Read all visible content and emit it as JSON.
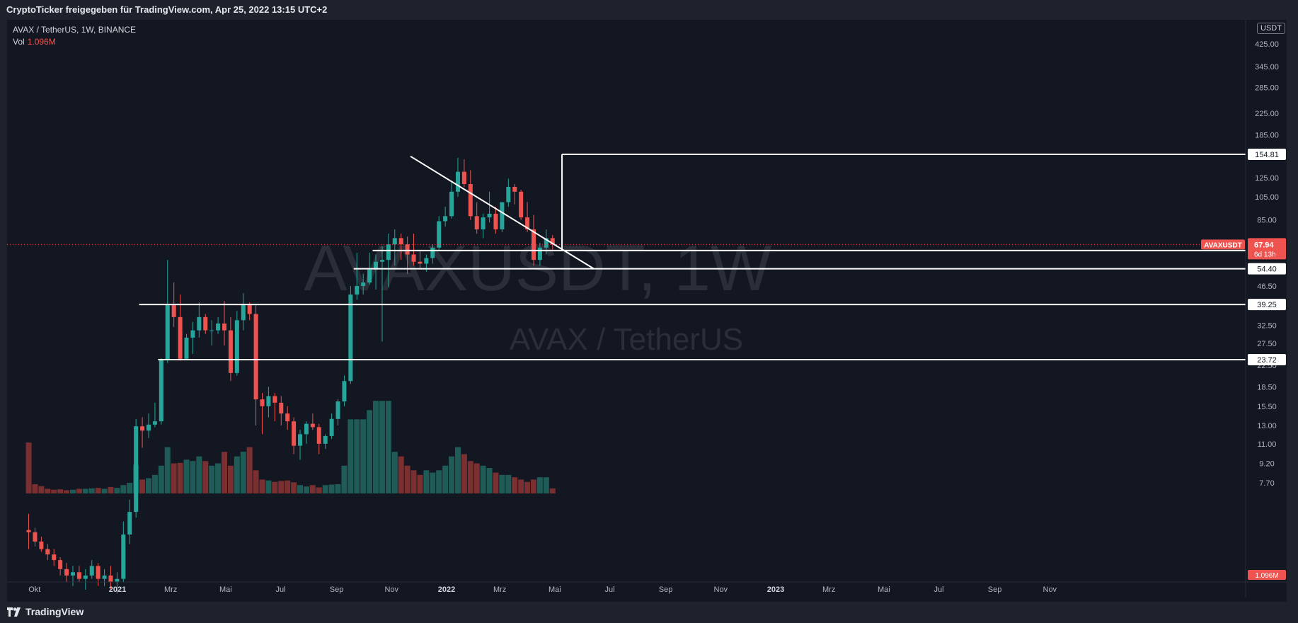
{
  "header": {
    "title": "CryptoTicker freigegeben für TradingView.com, Apr 25, 2022 13:15 UTC+2"
  },
  "legend": {
    "symbol": "AVAX / TetherUS, 1W, BINANCE",
    "vol_label": "Vol",
    "vol_value": "1.096M"
  },
  "watermark": {
    "main": "AVAXUSDT, 1W",
    "sub": "AVAX / TetherUS"
  },
  "brand": {
    "name": "TradingView"
  },
  "currency_badge": "USDT",
  "colors": {
    "background": "#131722",
    "up": "#26a69a",
    "down": "#ef5350",
    "level_line": "#ffffff",
    "price_line": "#ef5350"
  },
  "chart_data": {
    "type": "candlestick",
    "scale": "log",
    "interval": "1W",
    "y_ticks": [
      "425.00",
      "345.00",
      "285.00",
      "225.00",
      "185.00",
      "125.00",
      "105.00",
      "85.00",
      "46.50",
      "32.50",
      "27.50",
      "22.50",
      "18.50",
      "15.50",
      "13.00",
      "11.00",
      "9.20",
      "7.70"
    ],
    "x_ticks": [
      {
        "label": "Okt",
        "date": "2020-10-01"
      },
      {
        "label": "2021",
        "date": "2021-01-01"
      },
      {
        "label": "Mrz",
        "date": "2021-03-01"
      },
      {
        "label": "Mai",
        "date": "2021-05-01"
      },
      {
        "label": "Jul",
        "date": "2021-07-01"
      },
      {
        "label": "Sep",
        "date": "2021-09-01"
      },
      {
        "label": "Nov",
        "date": "2021-11-01"
      },
      {
        "label": "2022",
        "date": "2022-01-01"
      },
      {
        "label": "Mrz",
        "date": "2022-03-01"
      },
      {
        "label": "Mai",
        "date": "2022-05-01"
      },
      {
        "label": "Jul",
        "date": "2022-07-01"
      },
      {
        "label": "Sep",
        "date": "2022-09-01"
      },
      {
        "label": "Nov",
        "date": "2022-11-01"
      },
      {
        "label": "2023",
        "date": "2023-01-01"
      },
      {
        "label": "Mrz",
        "date": "2023-03-01"
      },
      {
        "label": "Mai",
        "date": "2023-05-01"
      },
      {
        "label": "Jul",
        "date": "2023-07-01"
      },
      {
        "label": "Sep",
        "date": "2023-09-01"
      },
      {
        "label": "Nov",
        "date": "2023-11-01"
      }
    ],
    "current_price": {
      "symbol": "AVAXUSDT",
      "value": "67.94",
      "countdown": "6d 13h"
    },
    "levels": [
      {
        "price": "154.81",
        "start": "2022-05-09"
      },
      {
        "price": "64.30",
        "start": "2021-10-11"
      },
      {
        "price": "54.40",
        "start": "2021-09-20"
      },
      {
        "price": "39.25",
        "start": "2021-01-25"
      },
      {
        "price": "23.72",
        "start": "2021-02-15"
      }
    ],
    "box": {
      "from": "2022-05-09",
      "top": 154.81,
      "bottom": 64.3
    },
    "trendline": {
      "from": {
        "date": "2021-11-22",
        "price": 152
      },
      "to": {
        "date": "2022-06-13",
        "price": 54.5
      }
    },
    "volume_ylim": [
      0,
      26
    ],
    "candles": [
      {
        "d": "2020-09-21",
        "o": 5.0,
        "h": 5.8,
        "l": 4.2,
        "c": 4.9,
        "v": 11.0
      },
      {
        "d": "2020-09-28",
        "o": 4.9,
        "h": 5.1,
        "l": 4.3,
        "c": 4.5,
        "v": 2.0
      },
      {
        "d": "2020-10-05",
        "o": 4.5,
        "h": 4.7,
        "l": 4.1,
        "c": 4.2,
        "v": 1.6
      },
      {
        "d": "2020-10-12",
        "o": 4.2,
        "h": 4.4,
        "l": 3.8,
        "c": 4.0,
        "v": 1.0
      },
      {
        "d": "2020-10-19",
        "o": 4.0,
        "h": 4.2,
        "l": 3.6,
        "c": 3.8,
        "v": 0.8
      },
      {
        "d": "2020-10-26",
        "o": 3.8,
        "h": 3.9,
        "l": 3.3,
        "c": 3.5,
        "v": 0.9
      },
      {
        "d": "2020-11-02",
        "o": 3.5,
        "h": 3.7,
        "l": 3.1,
        "c": 3.3,
        "v": 0.7
      },
      {
        "d": "2020-11-09",
        "o": 3.3,
        "h": 3.6,
        "l": 3.0,
        "c": 3.4,
        "v": 0.8
      },
      {
        "d": "2020-11-16",
        "o": 3.4,
        "h": 3.6,
        "l": 3.1,
        "c": 3.2,
        "v": 1.0
      },
      {
        "d": "2020-11-23",
        "o": 3.2,
        "h": 3.5,
        "l": 2.9,
        "c": 3.3,
        "v": 1.0
      },
      {
        "d": "2020-11-30",
        "o": 3.3,
        "h": 3.8,
        "l": 3.2,
        "c": 3.6,
        "v": 1.1
      },
      {
        "d": "2020-12-07",
        "o": 3.6,
        "h": 3.7,
        "l": 3.0,
        "c": 3.2,
        "v": 1.2
      },
      {
        "d": "2020-12-14",
        "o": 3.2,
        "h": 3.5,
        "l": 3.0,
        "c": 3.3,
        "v": 1.0
      },
      {
        "d": "2020-12-21",
        "o": 3.3,
        "h": 3.6,
        "l": 2.9,
        "c": 3.1,
        "v": 1.4
      },
      {
        "d": "2020-12-28",
        "o": 3.1,
        "h": 3.4,
        "l": 2.8,
        "c": 3.2,
        "v": 1.2
      },
      {
        "d": "2021-01-04",
        "o": 3.2,
        "h": 5.4,
        "l": 3.1,
        "c": 4.8,
        "v": 1.8
      },
      {
        "d": "2021-01-11",
        "o": 4.8,
        "h": 6.6,
        "l": 4.4,
        "c": 5.9,
        "v": 2.3
      },
      {
        "d": "2021-01-18",
        "o": 5.9,
        "h": 13.8,
        "l": 5.6,
        "c": 12.9,
        "v": 6.2
      },
      {
        "d": "2021-01-25",
        "o": 12.9,
        "h": 14.0,
        "l": 10.6,
        "c": 12.4,
        "v": 3.0
      },
      {
        "d": "2021-02-01",
        "o": 12.4,
        "h": 14.5,
        "l": 11.6,
        "c": 13.1,
        "v": 3.3
      },
      {
        "d": "2021-02-08",
        "o": 13.1,
        "h": 16.0,
        "l": 12.8,
        "c": 13.5,
        "v": 4.0
      },
      {
        "d": "2021-02-15",
        "o": 13.5,
        "h": 24.0,
        "l": 13.1,
        "c": 23.7,
        "v": 6.0
      },
      {
        "d": "2021-02-22",
        "o": 23.7,
        "h": 59.0,
        "l": 23.0,
        "c": 39.0,
        "v": 10.0
      },
      {
        "d": "2021-03-01",
        "o": 39.0,
        "h": 48.0,
        "l": 32.0,
        "c": 35.0,
        "v": 6.5
      },
      {
        "d": "2021-03-08",
        "o": 35.0,
        "h": 43.0,
        "l": 23.5,
        "c": 23.9,
        "v": 6.6
      },
      {
        "d": "2021-03-15",
        "o": 23.9,
        "h": 30.0,
        "l": 23.7,
        "c": 29.0,
        "v": 7.3
      },
      {
        "d": "2021-03-22",
        "o": 29.0,
        "h": 33.5,
        "l": 25.0,
        "c": 31.0,
        "v": 7.0
      },
      {
        "d": "2021-03-29",
        "o": 31.0,
        "h": 40.0,
        "l": 29.0,
        "c": 35.0,
        "v": 8.0
      },
      {
        "d": "2021-04-05",
        "o": 35.0,
        "h": 36.0,
        "l": 30.0,
        "c": 31.0,
        "v": 7.0
      },
      {
        "d": "2021-04-12",
        "o": 31.0,
        "h": 34.0,
        "l": 27.0,
        "c": 31.0,
        "v": 6.0
      },
      {
        "d": "2021-04-19",
        "o": 31.0,
        "h": 35.0,
        "l": 30.0,
        "c": 33.0,
        "v": 6.5
      },
      {
        "d": "2021-04-26",
        "o": 33.0,
        "h": 40.5,
        "l": 27.0,
        "c": 31.0,
        "v": 9.0
      },
      {
        "d": "2021-05-03",
        "o": 31.0,
        "h": 35.0,
        "l": 19.5,
        "c": 21.0,
        "v": 6.0
      },
      {
        "d": "2021-05-10",
        "o": 21.0,
        "h": 37.0,
        "l": 20.5,
        "c": 34.0,
        "v": 8.0
      },
      {
        "d": "2021-05-17",
        "o": 34.0,
        "h": 43.5,
        "l": 31.0,
        "c": 39.0,
        "v": 9.0
      },
      {
        "d": "2021-05-24",
        "o": 39.0,
        "h": 40.0,
        "l": 34.0,
        "c": 36.0,
        "v": 10.0
      },
      {
        "d": "2021-05-31",
        "o": 36.0,
        "h": 39.0,
        "l": 13.0,
        "c": 16.5,
        "v": 5.0
      },
      {
        "d": "2021-06-07",
        "o": 16.5,
        "h": 17.5,
        "l": 12.0,
        "c": 15.5,
        "v": 3.0
      },
      {
        "d": "2021-06-14",
        "o": 15.5,
        "h": 18.5,
        "l": 14.0,
        "c": 17.0,
        "v": 2.8
      },
      {
        "d": "2021-06-21",
        "o": 17.0,
        "h": 17.5,
        "l": 13.5,
        "c": 16.0,
        "v": 2.5
      },
      {
        "d": "2021-06-28",
        "o": 16.0,
        "h": 17.0,
        "l": 13.0,
        "c": 14.5,
        "v": 2.7
      },
      {
        "d": "2021-07-05",
        "o": 14.5,
        "h": 15.5,
        "l": 12.5,
        "c": 13.5,
        "v": 2.8
      },
      {
        "d": "2021-07-12",
        "o": 13.5,
        "h": 14.0,
        "l": 10.0,
        "c": 10.8,
        "v": 2.4
      },
      {
        "d": "2021-07-19",
        "o": 10.8,
        "h": 12.5,
        "l": 9.5,
        "c": 12.0,
        "v": 1.8
      },
      {
        "d": "2021-07-26",
        "o": 12.0,
        "h": 13.5,
        "l": 11.0,
        "c": 13.2,
        "v": 1.5
      },
      {
        "d": "2021-08-02",
        "o": 13.2,
        "h": 14.5,
        "l": 12.5,
        "c": 12.8,
        "v": 1.8
      },
      {
        "d": "2021-08-09",
        "o": 12.8,
        "h": 13.2,
        "l": 10.0,
        "c": 11.0,
        "v": 1.3
      },
      {
        "d": "2021-08-16",
        "o": 11.0,
        "h": 12.0,
        "l": 10.5,
        "c": 11.8,
        "v": 1.8
      },
      {
        "d": "2021-08-23",
        "o": 11.8,
        "h": 14.5,
        "l": 11.5,
        "c": 13.8,
        "v": 1.9
      },
      {
        "d": "2021-08-30",
        "o": 13.8,
        "h": 16.5,
        "l": 13.0,
        "c": 16.2,
        "v": 2.0
      },
      {
        "d": "2021-09-06",
        "o": 16.2,
        "h": 20.5,
        "l": 15.5,
        "c": 19.5,
        "v": 6.0
      },
      {
        "d": "2021-09-13",
        "o": 19.5,
        "h": 46.5,
        "l": 19.0,
        "c": 43.0,
        "v": 16.0
      },
      {
        "d": "2021-09-20",
        "o": 43.0,
        "h": 63.0,
        "l": 41.0,
        "c": 46.5,
        "v": 16.0
      },
      {
        "d": "2021-09-27",
        "o": 46.5,
        "h": 52.0,
        "l": 43.0,
        "c": 48.0,
        "v": 16.0
      },
      {
        "d": "2021-10-04",
        "o": 48.0,
        "h": 63.0,
        "l": 47.0,
        "c": 54.0,
        "v": 18.0
      },
      {
        "d": "2021-10-11",
        "o": 54.0,
        "h": 62.0,
        "l": 45.0,
        "c": 58.0,
        "v": 20.0
      },
      {
        "d": "2021-10-18",
        "o": 58.0,
        "h": 67.0,
        "l": 28.0,
        "c": 59.0,
        "v": 20.0
      },
      {
        "d": "2021-10-25",
        "o": 59.0,
        "h": 75.0,
        "l": 46.0,
        "c": 68.0,
        "v": 20.0
      },
      {
        "d": "2021-11-01",
        "o": 68.0,
        "h": 78.0,
        "l": 56.0,
        "c": 72.0,
        "v": 9.0
      },
      {
        "d": "2021-11-08",
        "o": 72.0,
        "h": 75.0,
        "l": 59.0,
        "c": 68.0,
        "v": 8.0
      },
      {
        "d": "2021-11-15",
        "o": 68.0,
        "h": 73.0,
        "l": 52.0,
        "c": 62.0,
        "v": 6.0
      },
      {
        "d": "2021-11-22",
        "o": 62.0,
        "h": 75.0,
        "l": 56.0,
        "c": 58.0,
        "v": 5.0
      },
      {
        "d": "2021-11-29",
        "o": 58.0,
        "h": 64.0,
        "l": 54.0,
        "c": 57.0,
        "v": 4.0
      },
      {
        "d": "2021-12-06",
        "o": 57.0,
        "h": 62.0,
        "l": 53.0,
        "c": 60.0,
        "v": 5.0
      },
      {
        "d": "2021-12-13",
        "o": 60.0,
        "h": 68.0,
        "l": 57.0,
        "c": 66.0,
        "v": 4.5
      },
      {
        "d": "2021-12-20",
        "o": 66.0,
        "h": 88.0,
        "l": 64.0,
        "c": 84.0,
        "v": 5.0
      },
      {
        "d": "2021-12-27",
        "o": 84.0,
        "h": 96.0,
        "l": 80.0,
        "c": 88.0,
        "v": 6.0
      },
      {
        "d": "2022-01-03",
        "o": 88.0,
        "h": 120.0,
        "l": 86.0,
        "c": 110.0,
        "v": 8.0
      },
      {
        "d": "2022-01-10",
        "o": 110.0,
        "h": 150.0,
        "l": 105.0,
        "c": 132.0,
        "v": 10.0
      },
      {
        "d": "2022-01-17",
        "o": 132.0,
        "h": 148.0,
        "l": 115.0,
        "c": 118.0,
        "v": 8.5
      },
      {
        "d": "2022-01-24",
        "o": 118.0,
        "h": 134.0,
        "l": 85.0,
        "c": 88.0,
        "v": 7.0
      },
      {
        "d": "2022-01-31",
        "o": 88.0,
        "h": 100.0,
        "l": 75.0,
        "c": 78.0,
        "v": 6.5
      },
      {
        "d": "2022-02-07",
        "o": 78.0,
        "h": 90.0,
        "l": 72.0,
        "c": 87.0,
        "v": 6.0
      },
      {
        "d": "2022-02-14",
        "o": 87.0,
        "h": 110.0,
        "l": 83.0,
        "c": 90.0,
        "v": 5.5
      },
      {
        "d": "2022-02-21",
        "o": 90.0,
        "h": 96.0,
        "l": 75.0,
        "c": 78.0,
        "v": 4.5
      },
      {
        "d": "2022-02-28",
        "o": 78.0,
        "h": 100.0,
        "l": 76.0,
        "c": 100.0,
        "v": 4.0
      },
      {
        "d": "2022-03-07",
        "o": 100.0,
        "h": 124.0,
        "l": 96.0,
        "c": 115.0,
        "v": 4.0
      },
      {
        "d": "2022-03-14",
        "o": 115.0,
        "h": 118.0,
        "l": 98.0,
        "c": 110.0,
        "v": 3.5
      },
      {
        "d": "2022-03-21",
        "o": 110.0,
        "h": 112.0,
        "l": 85.0,
        "c": 87.0,
        "v": 3.0
      },
      {
        "d": "2022-03-28",
        "o": 87.0,
        "h": 100.0,
        "l": 76.0,
        "c": 78.0,
        "v": 2.5
      },
      {
        "d": "2022-04-04",
        "o": 78.0,
        "h": 89.0,
        "l": 56.0,
        "c": 59.0,
        "v": 3.0
      },
      {
        "d": "2022-04-11",
        "o": 59.0,
        "h": 69.0,
        "l": 56.0,
        "c": 66.0,
        "v": 3.5
      },
      {
        "d": "2022-04-18",
        "o": 66.0,
        "h": 78.0,
        "l": 62.0,
        "c": 72.0,
        "v": 3.5
      },
      {
        "d": "2022-04-25",
        "o": 72.0,
        "h": 74.0,
        "l": 64.0,
        "c": 67.94,
        "v": 1.096
      }
    ]
  }
}
